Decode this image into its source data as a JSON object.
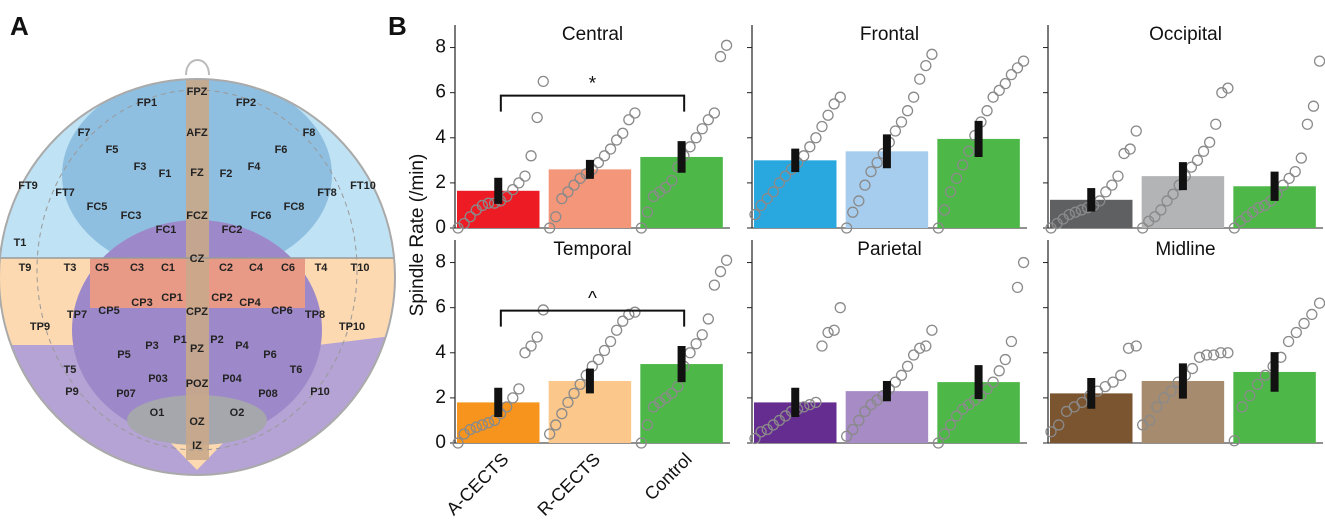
{
  "panel_a": {
    "label": "A",
    "electrodes": [
      "FPZ",
      "FP1",
      "FP2",
      "AFZ",
      "F7",
      "F8",
      "F5",
      "F6",
      "F3",
      "F4",
      "F1",
      "FZ",
      "F2",
      "FT9",
      "FT10",
      "FT7",
      "FT8",
      "FC5",
      "FC3",
      "FC1",
      "FCZ",
      "FC2",
      "FC6",
      "FC8",
      "T1",
      "T9",
      "T3",
      "C5",
      "C3",
      "C1",
      "CZ",
      "C2",
      "C4",
      "C6",
      "T4",
      "T10",
      "CP1",
      "CP2",
      "CP3",
      "CP4",
      "CP5",
      "CP6",
      "CPZ",
      "TP7",
      "TP8",
      "TP9",
      "TP10",
      "P1",
      "P2",
      "P3",
      "P4",
      "PZ",
      "P5",
      "P6",
      "T5",
      "T6",
      "P9",
      "P10",
      "P03",
      "POZ",
      "P04",
      "P07",
      "P08",
      "O1",
      "O2",
      "OZ",
      "IZ"
    ]
  },
  "panel_b": {
    "label": "B",
    "ylabel": "Spindle Rate (/min)",
    "categories": [
      "A-CECTS",
      "R-CECTS",
      "Control"
    ],
    "ylim": [
      0,
      9
    ],
    "yticks": [
      0,
      2,
      4,
      6,
      8
    ],
    "point_color": "#8a8a8a",
    "error_color": "#111111"
  },
  "chart_data": [
    {
      "type": "bar",
      "title": "Central",
      "annotation": "*",
      "values": [
        1.65,
        2.6,
        3.15
      ],
      "errors": [
        0.58,
        0.42,
        0.7
      ],
      "colors": [
        "#ed1c24",
        "#f4967a",
        "#4db848"
      ],
      "points": [
        [
          0,
          0.2,
          0.5,
          0.8,
          1.0,
          1.1,
          1.1,
          1.2,
          1.4,
          1.7,
          2.0,
          2.3,
          3.2,
          4.9,
          6.5
        ],
        [
          0,
          0.5,
          1.3,
          1.6,
          1.9,
          2.2,
          2.4,
          2.6,
          2.9,
          3.2,
          3.5,
          3.9,
          4.2,
          4.8,
          5.1
        ],
        [
          0,
          0.7,
          1.4,
          1.6,
          1.8,
          2.1,
          2.7,
          3.2,
          3.6,
          4.0,
          4.4,
          4.8,
          5.1,
          7.6,
          8.1
        ]
      ]
    },
    {
      "type": "bar",
      "title": "Frontal",
      "values": [
        3.0,
        3.4,
        3.95
      ],
      "errors": [
        0.52,
        0.75,
        0.8
      ],
      "colors": [
        "#29a8e0",
        "#a6cdee",
        "#4db848"
      ],
      "points": [
        [
          0.6,
          1.0,
          1.3,
          1.6,
          2.0,
          2.3,
          2.6,
          2.9,
          3.2,
          3.6,
          4.0,
          4.5,
          5.0,
          5.5,
          5.8
        ],
        [
          0,
          0.7,
          1.2,
          1.9,
          2.5,
          2.9,
          3.3,
          3.8,
          4.3,
          4.7,
          5.2,
          5.8,
          6.6,
          7.2,
          7.7
        ],
        [
          0,
          0.8,
          1.6,
          2.2,
          2.8,
          3.4,
          4.1,
          4.7,
          5.2,
          5.8,
          6.1,
          6.4,
          6.8,
          7.1,
          7.4
        ]
      ]
    },
    {
      "type": "bar",
      "title": "Occipital",
      "values": [
        1.25,
        2.3,
        1.85
      ],
      "errors": [
        0.52,
        0.62,
        0.65
      ],
      "colors": [
        "#5f6062",
        "#b3b4b6",
        "#4db848"
      ],
      "points": [
        [
          0,
          0.2,
          0.4,
          0.6,
          0.7,
          0.8,
          0.9,
          1.0,
          1.2,
          1.6,
          1.9,
          2.3,
          3.3,
          3.5,
          4.3
        ],
        [
          0,
          0.3,
          0.5,
          0.8,
          1.2,
          1.5,
          1.9,
          2.3,
          2.7,
          3.0,
          3.4,
          3.8,
          4.6,
          6.0,
          6.2
        ],
        [
          0,
          0.3,
          0.5,
          0.7,
          0.9,
          1.0,
          1.2,
          1.5,
          1.9,
          2.2,
          2.5,
          3.1,
          4.6,
          5.4,
          7.4
        ]
      ]
    },
    {
      "type": "bar",
      "title": "Temporal",
      "annotation": "^",
      "values": [
        1.8,
        2.75,
        3.5
      ],
      "errors": [
        0.65,
        0.55,
        0.8
      ],
      "colors": [
        "#f7941d",
        "#fbc78a",
        "#4db848"
      ],
      "points": [
        [
          0,
          0.4,
          0.6,
          0.7,
          0.8,
          0.9,
          1.0,
          1.3,
          1.6,
          2.0,
          2.4,
          4.0,
          4.3,
          4.7,
          5.9
        ],
        [
          0.4,
          0.8,
          1.3,
          1.8,
          2.2,
          2.6,
          3.0,
          3.4,
          3.7,
          4.1,
          4.5,
          5.0,
          5.4,
          5.7,
          5.8
        ],
        [
          0,
          0.8,
          1.6,
          1.8,
          2.0,
          2.2,
          2.5,
          3.4,
          4.0,
          4.4,
          4.8,
          5.5,
          7.0,
          7.6,
          8.1
        ]
      ]
    },
    {
      "type": "bar",
      "title": "Parietal",
      "values": [
        1.8,
        2.3,
        2.7
      ],
      "errors": [
        0.65,
        0.45,
        0.75
      ],
      "colors": [
        "#662d91",
        "#a68bc5",
        "#4db848"
      ],
      "points": [
        [
          0.2,
          0.5,
          0.6,
          0.8,
          1.0,
          1.2,
          1.4,
          1.5,
          1.6,
          1.7,
          1.8,
          4.3,
          4.9,
          5.0,
          6.0
        ],
        [
          0.3,
          0.6,
          1.0,
          1.4,
          1.7,
          1.9,
          2.1,
          2.4,
          2.7,
          3.0,
          3.4,
          3.9,
          4.2,
          4.3,
          5.0
        ],
        [
          0,
          0.4,
          0.8,
          1.2,
          1.5,
          1.7,
          1.9,
          2.1,
          2.4,
          2.7,
          3.2,
          3.7,
          4.5,
          6.9,
          8.0
        ]
      ]
    },
    {
      "type": "bar",
      "title": "Midline",
      "values": [
        2.2,
        2.75,
        3.15
      ],
      "errors": [
        0.68,
        0.78,
        0.88
      ],
      "colors": [
        "#7b5430",
        "#a78b6e",
        "#4db848"
      ],
      "points": [
        [
          0.5,
          0.8,
          1.4,
          1.6,
          1.8,
          2.1,
          2.3,
          2.5,
          2.7,
          3.0,
          4.2,
          4.3
        ],
        [
          0.8,
          1.0,
          1.6,
          2.0,
          2.3,
          2.7,
          3.0,
          3.3,
          3.8,
          3.9,
          3.9,
          4.0,
          4.0
        ],
        [
          0.1,
          1.6,
          2.1,
          2.6,
          3.0,
          3.4,
          3.8,
          4.5,
          4.9,
          5.3,
          5.7,
          6.2
        ]
      ]
    }
  ]
}
